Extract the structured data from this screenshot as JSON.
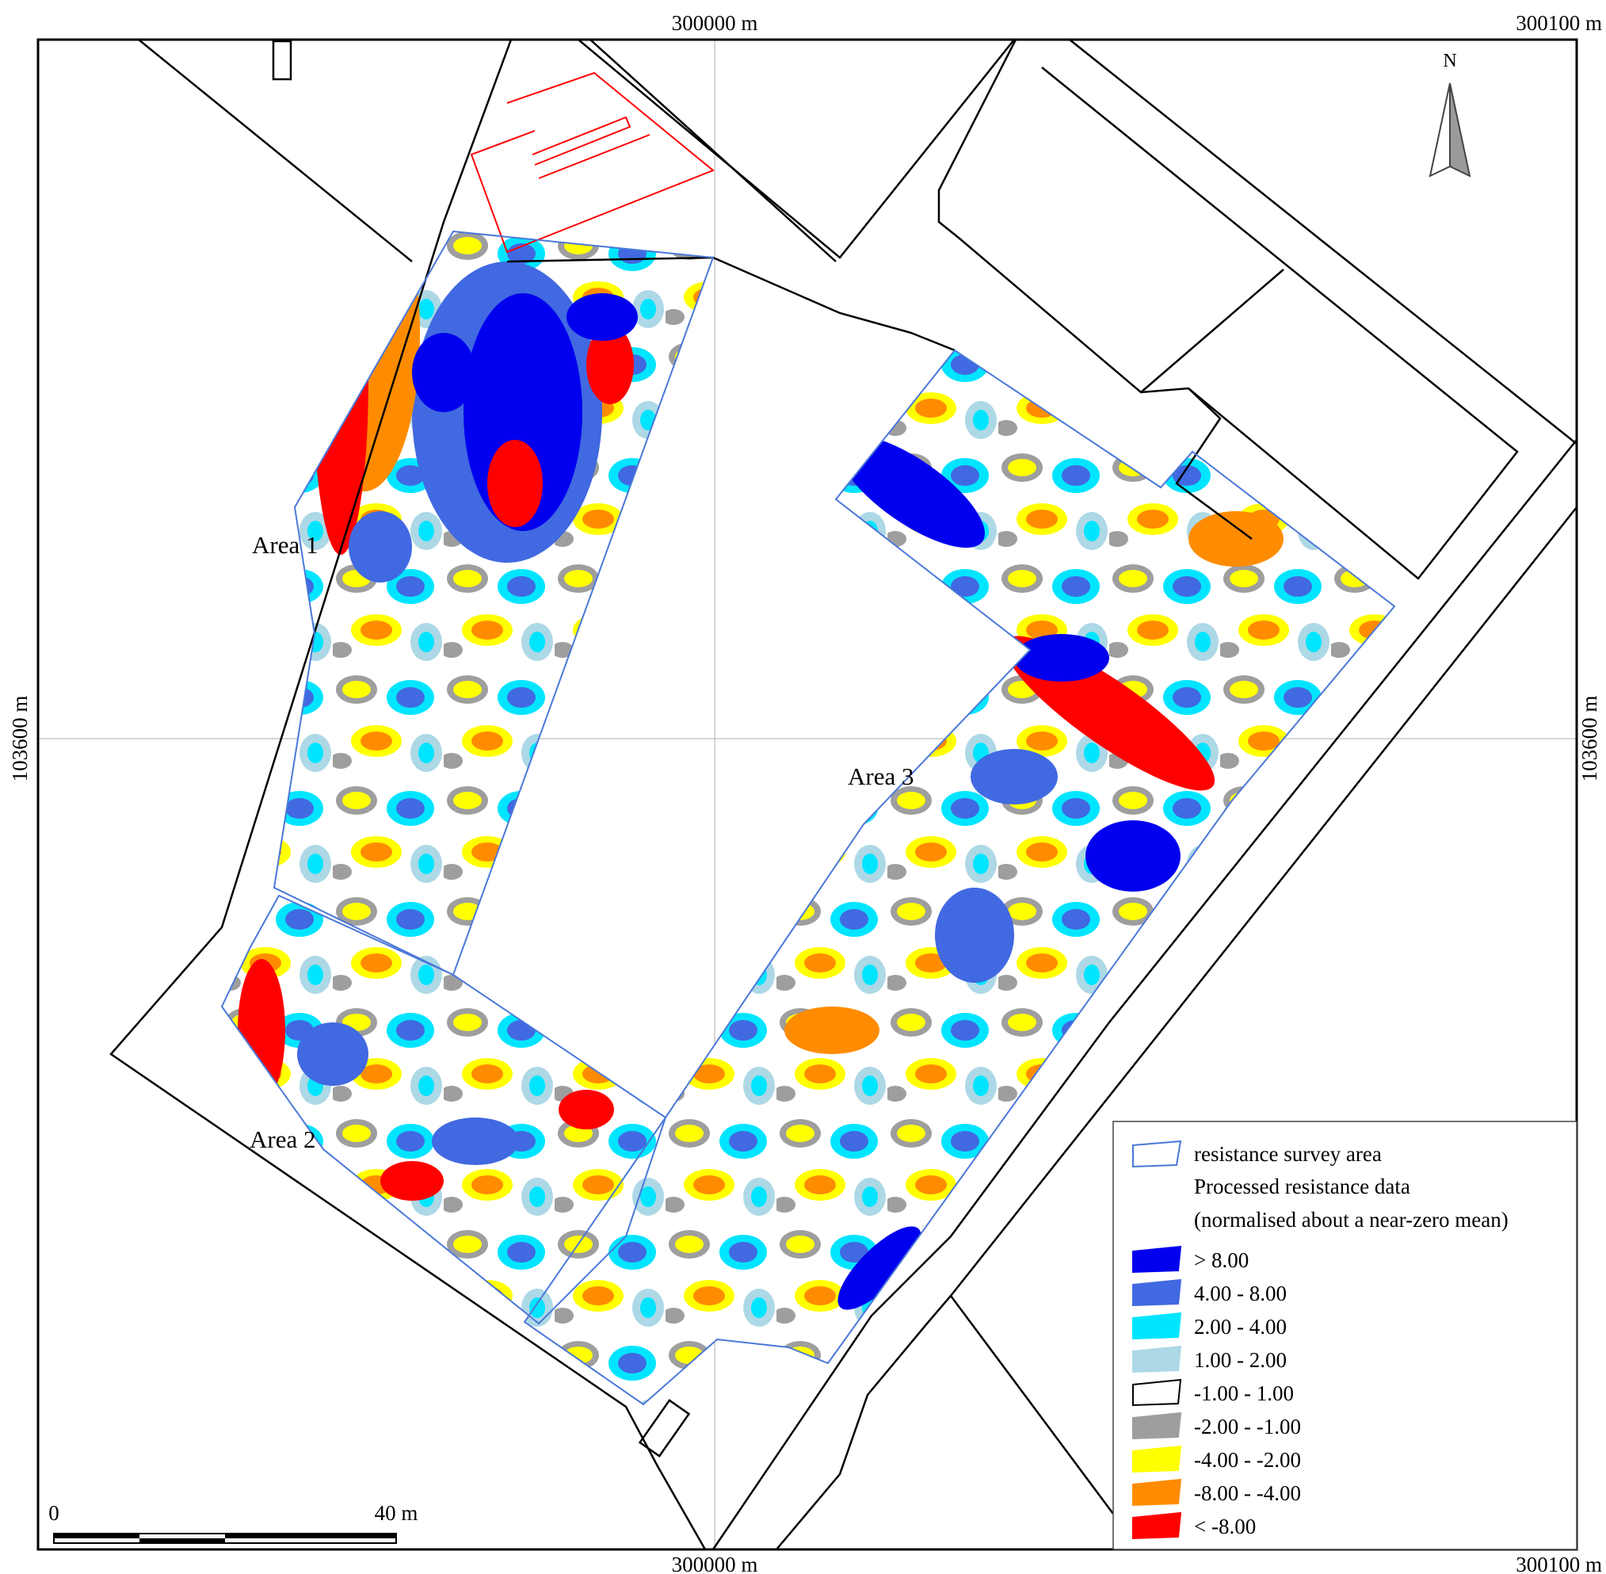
{
  "grid_labels": {
    "top_left": "300000 m",
    "top_right": "300100 m",
    "bottom_left": "300000 m",
    "bottom_right": "300100 m",
    "left": "103600 m",
    "right": "103600 m"
  },
  "north_label": "N",
  "areas": [
    "Area 1",
    "Area 2",
    "Area 3"
  ],
  "scale_bar": {
    "start": "0",
    "end": "40 m"
  },
  "legend": {
    "survey_area": "resistance survey area",
    "heading1": "Processed resistance data",
    "heading2": "(normalised about a near-zero mean)",
    "classes": [
      {
        "label": "> 8.00",
        "color": "#0000ee"
      },
      {
        "label": "4.00 - 8.00",
        "color": "#4169e1"
      },
      {
        "label": "2.00 - 4.00",
        "color": "#00e5ff"
      },
      {
        "label": "1.00 - 2.00",
        "color": "#add8e6"
      },
      {
        "label": "-1.00 - 1.00",
        "color": "#ffffff"
      },
      {
        "label": "-2.00 - -1.00",
        "color": "#9e9e9e"
      },
      {
        "label": "-4.00 - -2.00",
        "color": "#ffff00"
      },
      {
        "label": "-8.00 - -4.00",
        "color": "#ff8c00"
      },
      {
        "label": "< -8.00",
        "color": "#ff0000"
      }
    ]
  },
  "colors": {
    "survey_outline": "#4a78d8",
    "features": "#ff0000",
    "boundaries": "#000000",
    "grid": "#c8c8c8"
  }
}
